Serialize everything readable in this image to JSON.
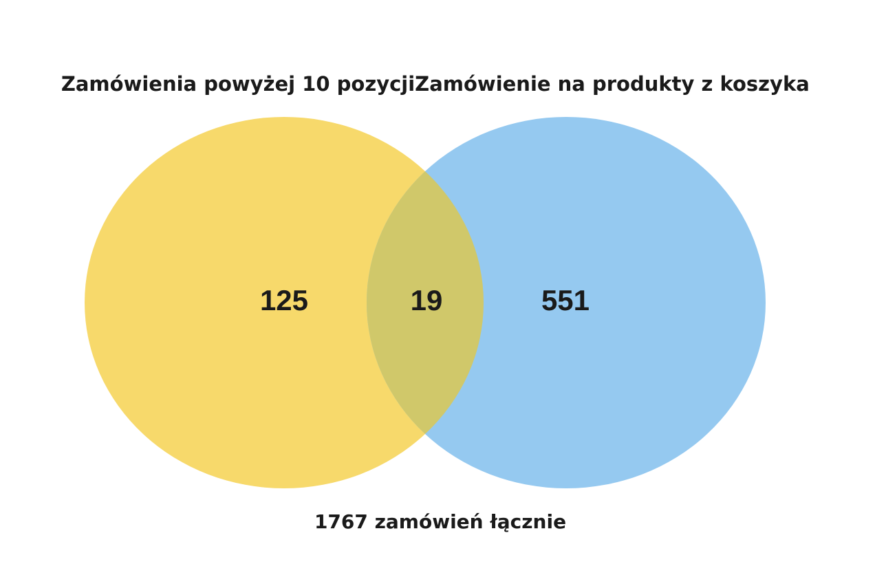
{
  "chart_data": {
    "type": "venn",
    "sets": [
      {
        "name": "Zamówienia powyżej 10 pozycji",
        "color": "#f7d96b",
        "value": 125
      },
      {
        "name": "Zamówienie na produkty z koszyka",
        "color": "#95c9f0",
        "value": 551
      }
    ],
    "intersection": 19,
    "intersection_color": "#d0c86a",
    "annotation": "1767 zamówień łącznie"
  }
}
